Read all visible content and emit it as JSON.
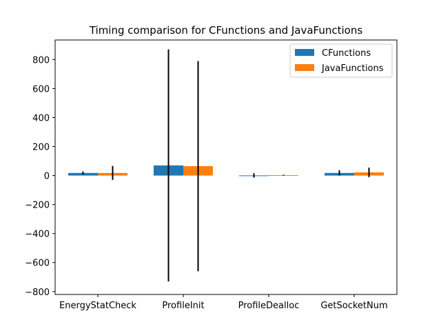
{
  "chart_data": {
    "type": "bar",
    "title": "Timing comparison for CFunctions and JavaFunctions",
    "xlabel": "",
    "ylabel": "",
    "categories": [
      "EnergyStatCheck",
      "ProfileInit",
      "ProfileDealloc",
      "GetSocketNum"
    ],
    "series": [
      {
        "name": "CFunctions",
        "color": "#1f77b4",
        "values": [
          18,
          70,
          1,
          18
        ],
        "errors": [
          10,
          800,
          15,
          18
        ]
      },
      {
        "name": "JavaFunctions",
        "color": "#ff7f0e",
        "values": [
          18,
          65,
          3,
          22
        ],
        "errors": [
          48,
          725,
          3,
          33
        ]
      }
    ],
    "ylim": [
      -820,
      935
    ],
    "yticks": [
      -800,
      -600,
      -400,
      -200,
      0,
      200,
      400,
      600,
      800
    ],
    "ytick_labels": [
      "−800",
      "−600",
      "−400",
      "−200",
      "0",
      "200",
      "400",
      "600",
      "800"
    ],
    "grid": false,
    "legend_position": "upper right"
  }
}
